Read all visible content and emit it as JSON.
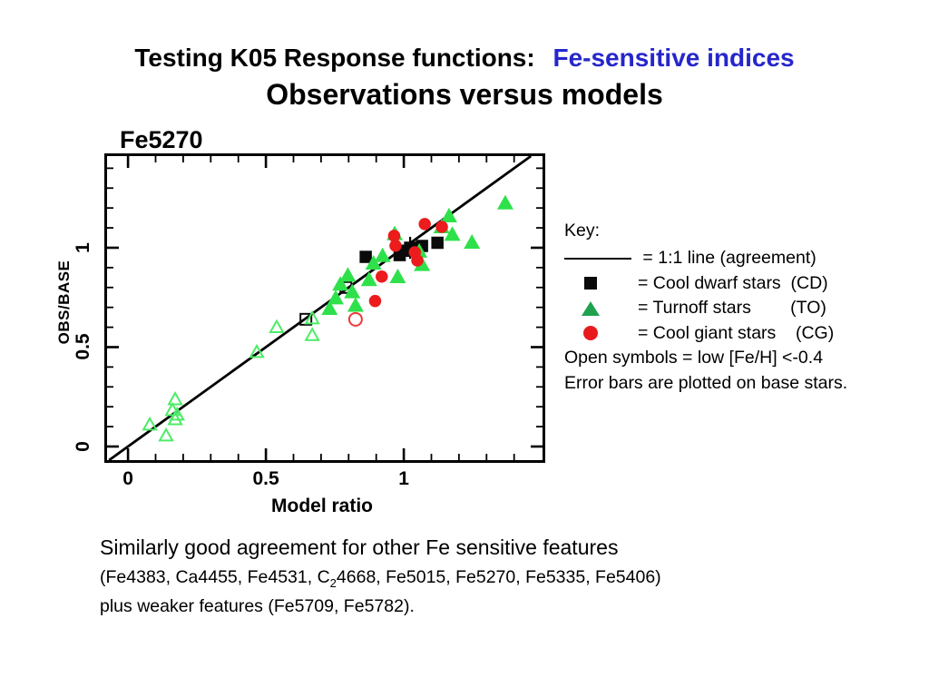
{
  "slide": {
    "title_black": "Testing K05 Response functions: ",
    "title_blue": "Fe-sensitive indices",
    "subtitle": "Observations versus models"
  },
  "chart_data": {
    "type": "scatter",
    "title": "Fe5270",
    "xlabel": "Model ratio",
    "ylabel": "OBS/BASE",
    "xlim": [
      -0.076,
      1.503
    ],
    "ylim": [
      -0.0685,
      1.461
    ],
    "xticks": [
      0,
      0.5,
      1
    ],
    "yticks": [
      0,
      0.5,
      1
    ],
    "minor_tick_step": 0.1,
    "grid": false,
    "legend_position": "right-outside",
    "reference_line": {
      "name": "1:1 line (agreement)",
      "x1": -0.0685,
      "y1": -0.0685,
      "x2": 1.461,
      "y2": 1.461,
      "color": "#000000"
    },
    "error_bars": [
      {
        "x": 1.023,
        "y": 1.0,
        "yerr": 0.055
      }
    ],
    "series": [
      {
        "id": "cd",
        "name": "Cool dwarf stars (CD)",
        "marker": "square",
        "fill": "filled",
        "color": "#0a0a0a",
        "points": [
          [
            0.862,
            0.954
          ],
          [
            0.985,
            0.963
          ],
          [
            1.005,
            0.985
          ],
          [
            1.023,
            1.0
          ],
          [
            1.066,
            1.009
          ],
          [
            1.122,
            1.025
          ]
        ]
      },
      {
        "id": "cd-open",
        "name": "Cool dwarf stars (CD), low [Fe/H]",
        "marker": "square",
        "fill": "open",
        "color": "#0a0a0a",
        "points": [
          [
            0.645,
            0.64
          ],
          [
            0.79,
            0.8
          ]
        ]
      },
      {
        "id": "to",
        "name": "Turnoff stars (TO)",
        "marker": "triangle",
        "fill": "filled",
        "color": "#2ee14b",
        "points": [
          [
            0.731,
            0.694
          ],
          [
            0.753,
            0.747
          ],
          [
            0.77,
            0.816
          ],
          [
            0.797,
            0.861
          ],
          [
            0.813,
            0.778
          ],
          [
            0.825,
            0.71
          ],
          [
            0.874,
            0.839
          ],
          [
            0.89,
            0.922
          ],
          [
            0.923,
            0.96
          ],
          [
            0.967,
            1.07
          ],
          [
            0.978,
            0.854
          ],
          [
            1.056,
            0.982
          ],
          [
            1.066,
            0.915
          ],
          [
            1.137,
            1.105
          ],
          [
            1.164,
            1.16
          ],
          [
            1.176,
            1.067
          ],
          [
            1.247,
            1.027
          ],
          [
            1.368,
            1.225
          ]
        ]
      },
      {
        "id": "to-open",
        "name": "Turnoff stars (TO), low [Fe/H]",
        "marker": "triangle",
        "fill": "open",
        "color": "#4cec66",
        "points": [
          [
            0.079,
            0.11
          ],
          [
            0.138,
            0.055
          ],
          [
            0.161,
            0.183
          ],
          [
            0.171,
            0.137
          ],
          [
            0.171,
            0.237
          ],
          [
            0.178,
            0.16
          ],
          [
            0.467,
            0.475
          ],
          [
            0.539,
            0.6
          ],
          [
            0.668,
            0.644
          ],
          [
            0.668,
            0.56
          ]
        ]
      },
      {
        "id": "cg",
        "name": "Cool giant stars (CG)",
        "marker": "circle",
        "fill": "filled",
        "color": "#ec1c1c",
        "points": [
          [
            0.896,
            0.732
          ],
          [
            0.92,
            0.855
          ],
          [
            0.965,
            1.06
          ],
          [
            0.97,
            1.01
          ],
          [
            1.04,
            0.977
          ],
          [
            1.049,
            0.936
          ],
          [
            1.076,
            1.119
          ],
          [
            1.138,
            1.105
          ]
        ]
      },
      {
        "id": "cg-open",
        "name": "Cool giant stars (CG), low [Fe/H]",
        "marker": "circle",
        "fill": "open",
        "color": "#ee3a3a",
        "points": [
          [
            0.825,
            0.64
          ]
        ]
      }
    ]
  },
  "key": {
    "heading": "Key:",
    "items": [
      {
        "symbol": "line",
        "label": " = 1:1 line (agreement)"
      },
      {
        "symbol": "black-square",
        "label": "= Cool dwarf stars  (CD)"
      },
      {
        "symbol": "green-triangle",
        "label": "= Turnoff stars        (TO)"
      },
      {
        "symbol": "red-circle",
        "label": "= Cool giant stars    (CG)"
      }
    ],
    "note1": "Open symbols = low [Fe/H] <-0.4",
    "note2": "Error bars are plotted on base stars."
  },
  "footer": {
    "line1": "Similarly good agreement for other Fe sensitive features",
    "line2_prefix": "(Fe4383, Ca4455, Fe4531, C",
    "line2_sub": "2",
    "line2_suffix": "4668, Fe5015, Fe5270, Fe5335, Fe5406)",
    "line3": "plus weaker features (Fe5709, Fe5782)."
  }
}
